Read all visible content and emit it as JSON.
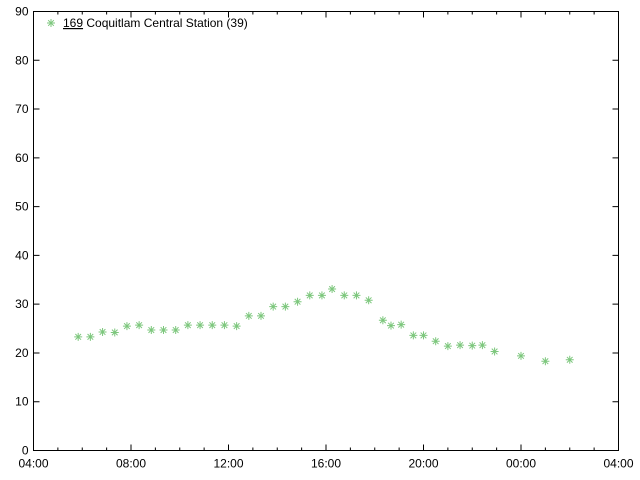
{
  "background_color": "#ffffff",
  "axis_color": "#000000",
  "text_color": "#000000",
  "chart_data": {
    "type": "scatter",
    "title": "",
    "xlabel": "",
    "ylabel": "",
    "grid": false,
    "legend": {
      "position": "top-left",
      "entries": [
        {
          "marker": "green-asterisk",
          "marker_color": "#7dc77d",
          "label": "169 Coquitlam Central Station (39)",
          "label_underlined_part": "169",
          "label_rest": " Coquitlam Central Station (39)"
        }
      ]
    },
    "x_axis": {
      "start_label": "04:00",
      "span_hours": 24,
      "tick_labels": [
        "04:00",
        "08:00",
        "12:00",
        "16:00",
        "20:00",
        "00:00",
        "04:00"
      ],
      "major_interval_minutes": 240,
      "minor_interval_minutes": 60
    },
    "y_axis": {
      "ticks": [
        0,
        10,
        20,
        30,
        40,
        50,
        60,
        70,
        80,
        90
      ],
      "range": [
        0,
        90
      ]
    },
    "series": [
      {
        "name": "169 Coquitlam Central Station (39)",
        "color": "#7dc77d",
        "marker": "asterisk",
        "x": [
          "05:50",
          "06:20",
          "06:50",
          "07:20",
          "07:50",
          "08:20",
          "08:50",
          "09:20",
          "09:50",
          "10:20",
          "10:50",
          "11:20",
          "11:50",
          "12:20",
          "12:50",
          "13:20",
          "13:50",
          "14:20",
          "14:50",
          "15:20",
          "15:50",
          "16:15",
          "16:45",
          "17:15",
          "17:45",
          "18:20",
          "18:40",
          "19:05",
          "19:35",
          "20:00",
          "20:30",
          "21:00",
          "21:30",
          "22:00",
          "22:25",
          "22:55",
          "00:00",
          "01:00",
          "02:00"
        ],
        "y": [
          23.3,
          23.3,
          24.3,
          24.2,
          25.5,
          25.7,
          24.7,
          24.7,
          24.7,
          25.7,
          25.7,
          25.7,
          25.7,
          25.5,
          27.6,
          27.6,
          29.5,
          29.5,
          30.5,
          31.8,
          31.8,
          33.1,
          31.8,
          31.8,
          30.8,
          26.7,
          25.6,
          25.8,
          23.6,
          23.6,
          22.4,
          21.4,
          21.6,
          21.5,
          21.6,
          20.3,
          19.4,
          18.3,
          18.6
        ]
      }
    ]
  }
}
